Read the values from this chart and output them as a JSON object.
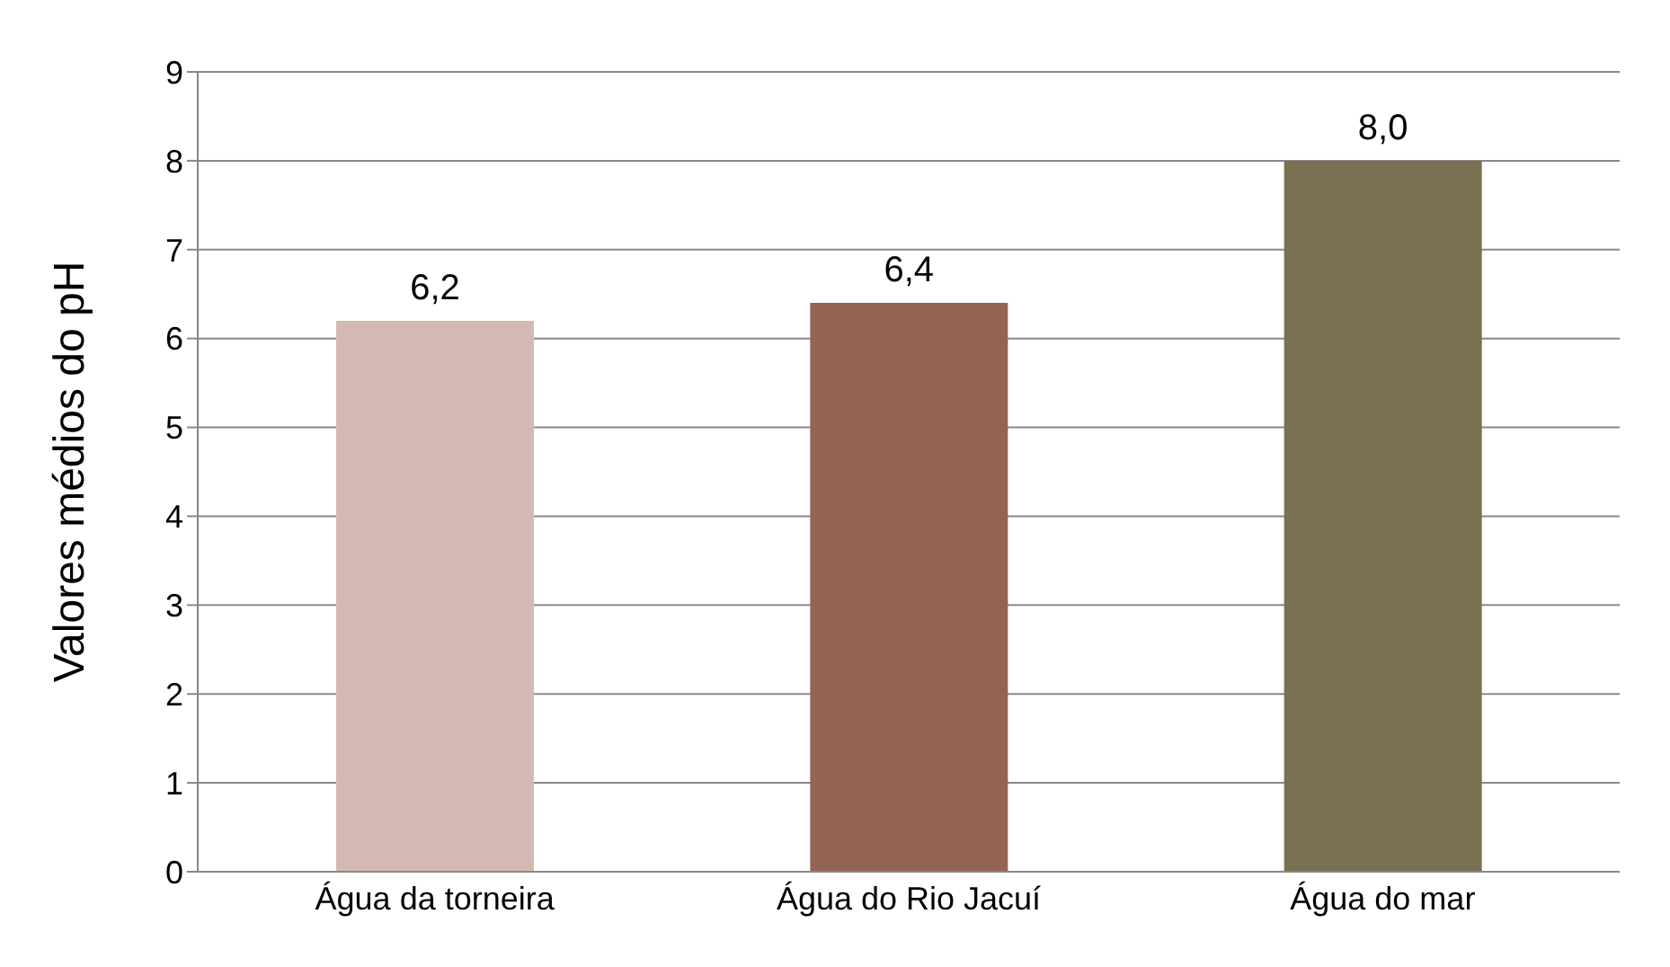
{
  "chart_data": {
    "type": "bar",
    "ylabel": "Valores médios do pH",
    "categories": [
      "Água da torneira",
      "Água do Rio Jacuí",
      "Água do mar"
    ],
    "values": [
      6.2,
      6.4,
      8.0
    ],
    "colors": [
      "#d4b9b3",
      "#936454",
      "#7a7152"
    ],
    "value_labels": [
      "6,2",
      "6,4",
      "8,0"
    ],
    "ylim": [
      0,
      9
    ],
    "yticks": [
      0,
      1,
      2,
      3,
      4,
      5,
      6,
      7,
      8,
      9
    ],
    "grid": "y"
  }
}
